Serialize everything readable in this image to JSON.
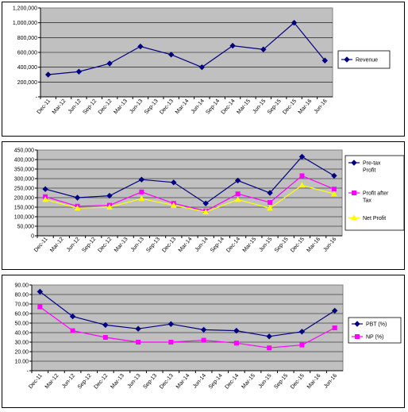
{
  "chart_data": [
    {
      "type": "line",
      "title": "",
      "xlabel": "",
      "ylabel": "",
      "ylim": [
        0,
        1200000
      ],
      "yticks": [
        "-",
        "200,000",
        "400,000",
        "600,000",
        "800,000",
        "1,000,000",
        "1,200,000"
      ],
      "categories": [
        "Dec-11",
        "Mar-12",
        "Jun-12",
        "Sep-12",
        "Dec-12",
        "Mar-13",
        "Jun-13",
        "Sep-13",
        "Dec-13",
        "Mar-14",
        "Jun-14",
        "Sep-14",
        "Dec-14",
        "Mar-15",
        "Jun-15",
        "Sep-15",
        "Dec-15",
        "Mar-16",
        "Jun-16"
      ],
      "grid": true,
      "legend": "right",
      "series": [
        {
          "name": "Revenue",
          "color": "#000080",
          "marker": "diamond",
          "x": [
            0,
            2,
            4,
            6,
            8,
            10,
            12,
            14,
            16,
            18
          ],
          "values": [
            300000,
            340000,
            450000,
            680000,
            570000,
            400000,
            690000,
            640000,
            1000000,
            490000
          ]
        }
      ]
    },
    {
      "type": "line",
      "title": "",
      "xlabel": "",
      "ylabel": "",
      "ylim": [
        0,
        450000
      ],
      "yticks": [
        "0",
        "50,000",
        "100,000",
        "150,000",
        "200,000",
        "250,000",
        "300,000",
        "350,000",
        "400,000",
        "450,000"
      ],
      "categories": [
        "Dec-11",
        "Mar-12",
        "Jun-12",
        "Sep-12",
        "Dec-12",
        "Mar-13",
        "Jun-13",
        "Sep-13",
        "Dec-13",
        "Mar-14",
        "Jun-14",
        "Sep-14",
        "Dec-14",
        "Mar-15",
        "Jun-15",
        "Sep-15",
        "Dec-15",
        "Mar-16",
        "Jun-16"
      ],
      "grid": true,
      "legend": "right",
      "series": [
        {
          "name": "Pre-tax Profit",
          "color": "#000080",
          "marker": "diamond",
          "x": [
            0,
            2,
            4,
            6,
            8,
            10,
            12,
            14,
            16,
            18
          ],
          "values": [
            245000,
            200000,
            210000,
            295000,
            280000,
            170000,
            290000,
            225000,
            415000,
            315000
          ]
        },
        {
          "name": "Profit after Tax",
          "color": "#ff00ff",
          "marker": "square",
          "x": [
            0,
            2,
            4,
            6,
            8,
            10,
            12,
            14,
            16,
            18
          ],
          "values": [
            205000,
            155000,
            160000,
            230000,
            170000,
            130000,
            220000,
            175000,
            315000,
            245000
          ]
        },
        {
          "name": "Net Profit",
          "color": "#ffff00",
          "marker": "triangle",
          "x": [
            0,
            2,
            4,
            6,
            8,
            10,
            12,
            14,
            16,
            18
          ],
          "values": [
            190000,
            145000,
            150000,
            195000,
            160000,
            125000,
            190000,
            145000,
            265000,
            220000
          ]
        }
      ]
    },
    {
      "type": "line",
      "title": "",
      "xlabel": "",
      "ylabel": "",
      "ylim": [
        0,
        90
      ],
      "yticks": [
        "-",
        "10.00",
        "20.00",
        "30.00",
        "40.00",
        "50.00",
        "60.00",
        "70.00",
        "80.00",
        "90.00"
      ],
      "categories": [
        "Dec-11",
        "Mar-12",
        "Jun-12",
        "Sep-12",
        "Dec-12",
        "Mar-13",
        "Jun-13",
        "Sep-13",
        "Dec-13",
        "Mar-14",
        "Jun-14",
        "Sep-14",
        "Dec-14",
        "Mar-15",
        "Jun-15",
        "Sep-15",
        "Dec-15",
        "Mar-16",
        "Jun-16"
      ],
      "grid": true,
      "legend": "right",
      "series": [
        {
          "name": "PBT (%)",
          "color": "#000080",
          "marker": "diamond",
          "x": [
            0,
            2,
            4,
            6,
            8,
            10,
            12,
            14,
            16,
            18
          ],
          "values": [
            83,
            57,
            48,
            44,
            49,
            43,
            42,
            36,
            41,
            63
          ]
        },
        {
          "name": "NP (%)",
          "color": "#ff00ff",
          "marker": "square",
          "x": [
            0,
            2,
            4,
            6,
            8,
            10,
            12,
            14,
            16,
            18
          ],
          "values": [
            67,
            42,
            35,
            30,
            30,
            32,
            29,
            24,
            27,
            45
          ]
        }
      ]
    }
  ]
}
